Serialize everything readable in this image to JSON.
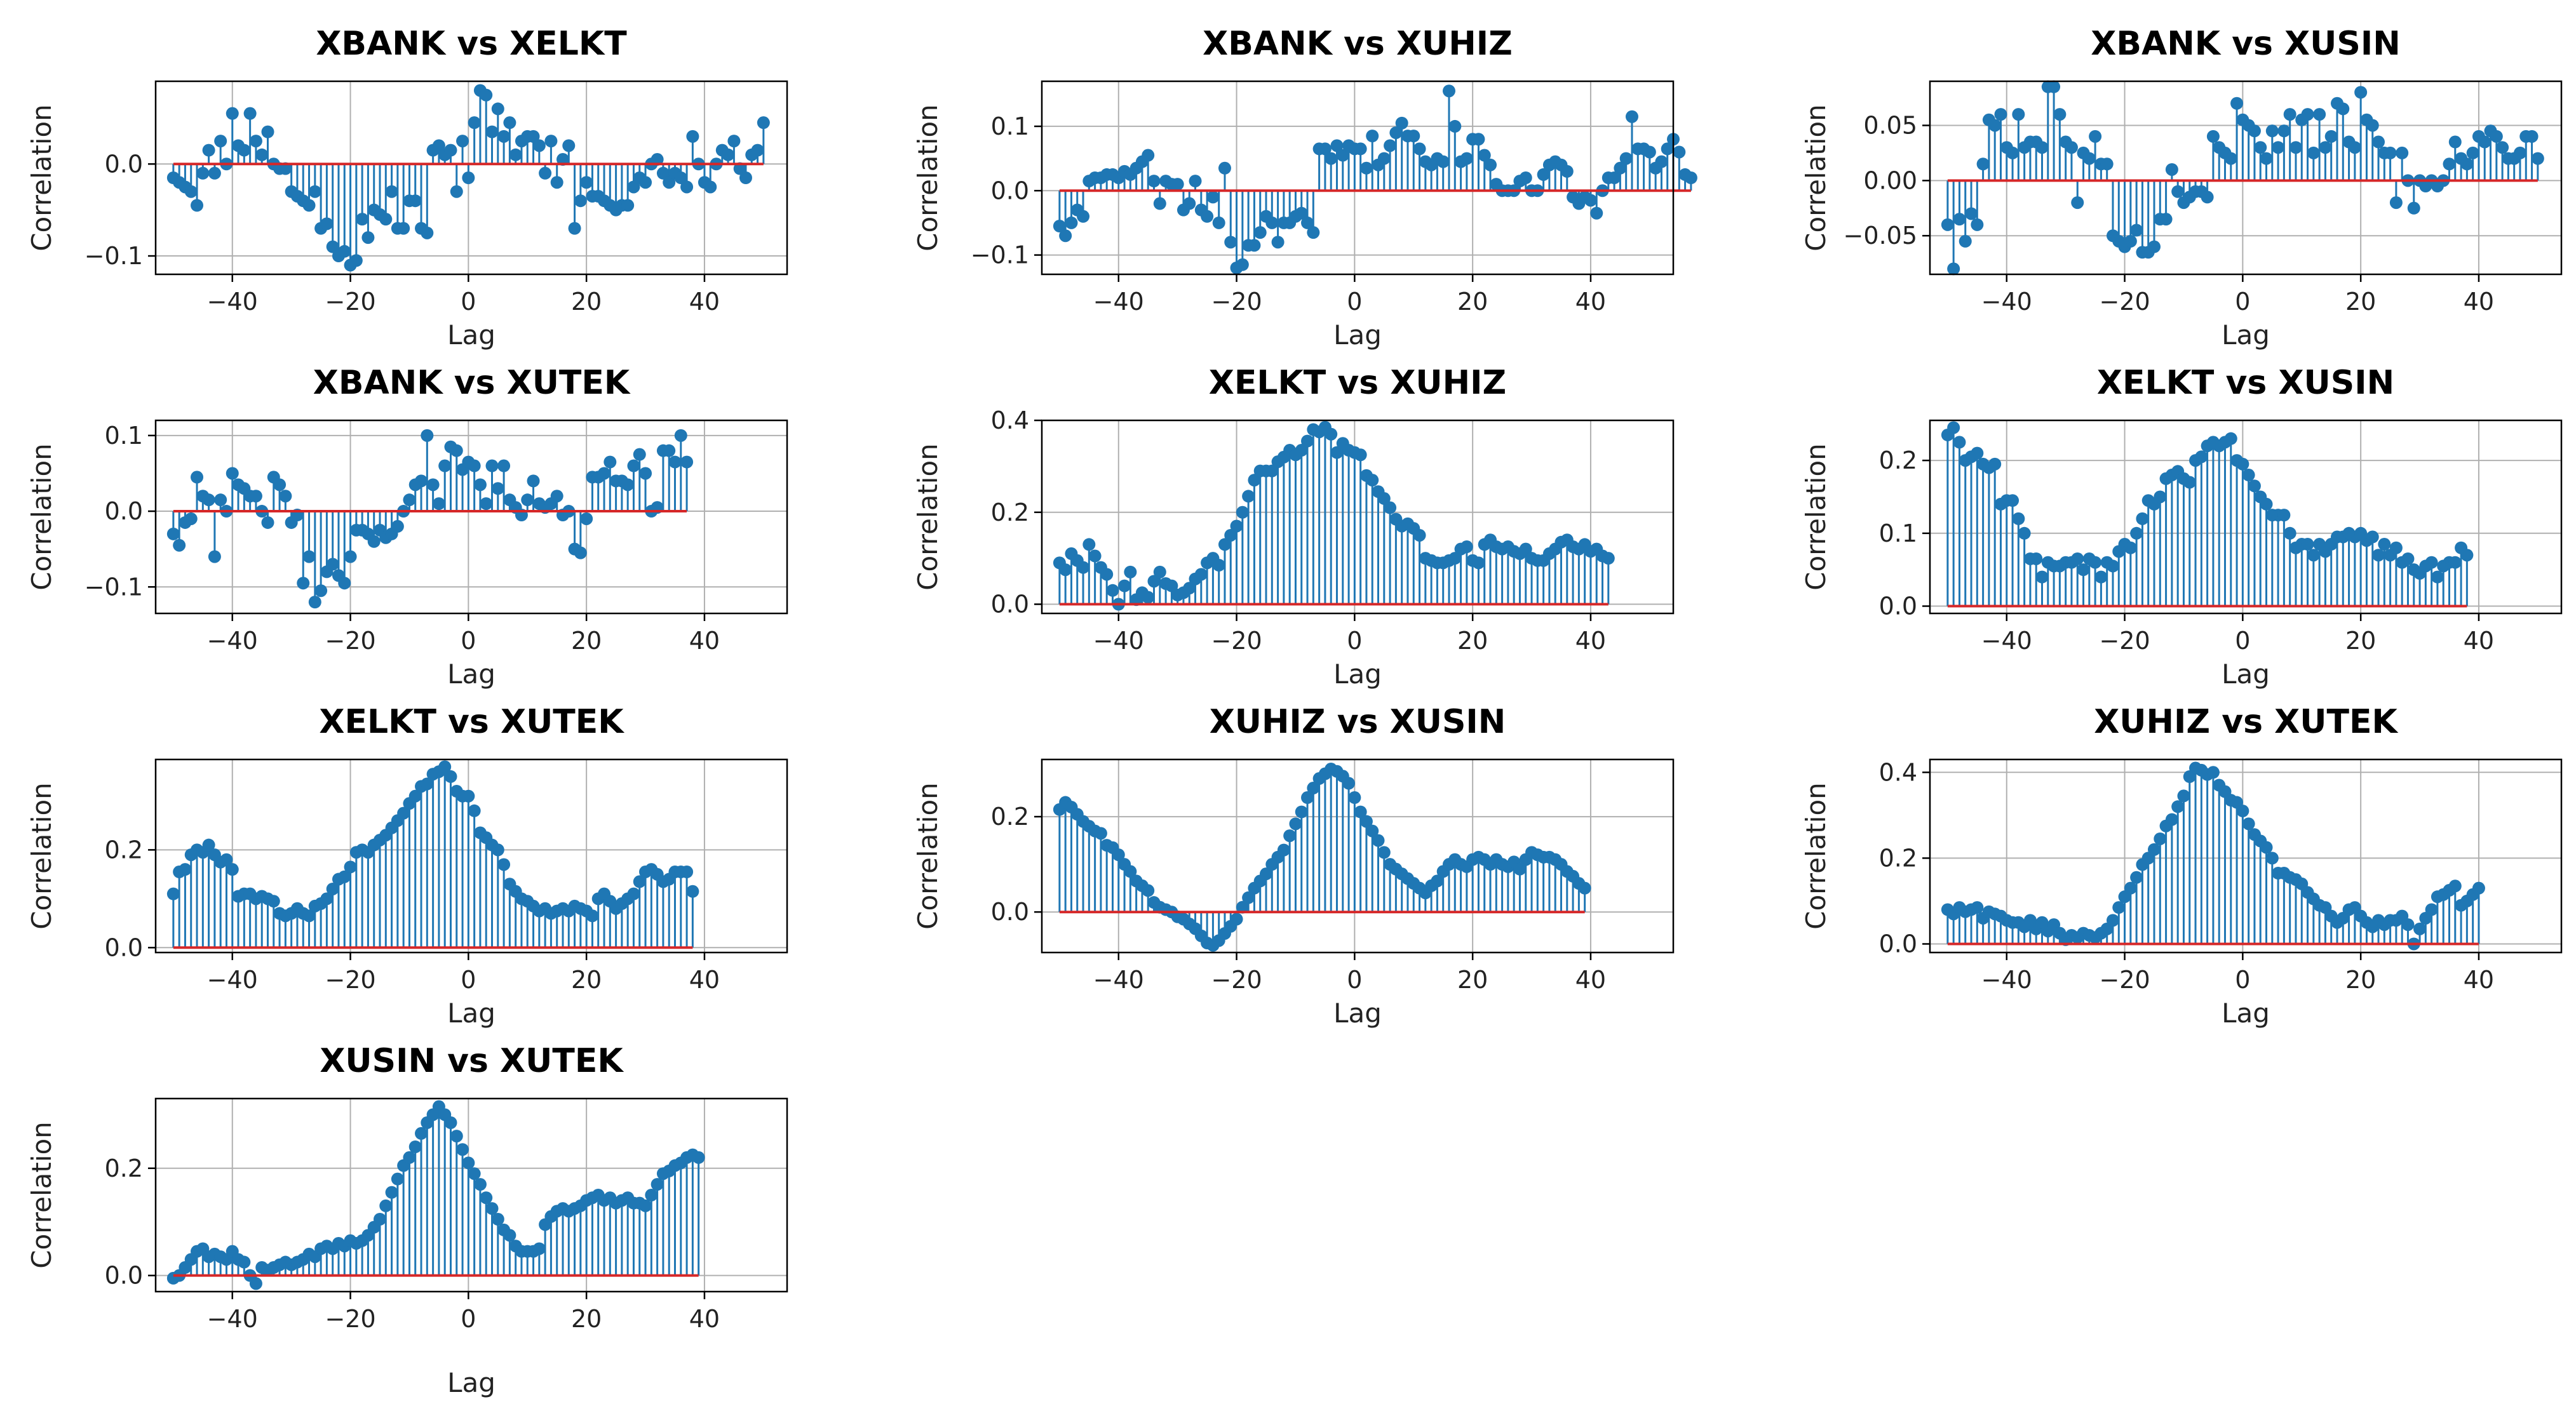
{
  "figure": {
    "subplot_rows": 4,
    "subplot_cols": 3,
    "marker_color": "#1f77b4",
    "baseline_color": "#d62728",
    "grid_color": "#b0b0b0"
  },
  "chart_data": [
    {
      "type": "stem",
      "title": "XBANK vs XELKT",
      "xlabel": "Lag",
      "ylabel": "Correlation",
      "xlim": [
        -53,
        54
      ],
      "ylim": [
        -0.12,
        0.09
      ],
      "xticks": [
        -40,
        -20,
        0,
        20,
        40
      ],
      "xtick_labels": [
        "−40",
        "−20",
        "0",
        "20",
        "40"
      ],
      "yticks": [
        -0.1,
        0.0
      ],
      "ytick_labels": [
        "−0.1",
        "0.0"
      ],
      "lag_start": -50,
      "values": [
        -0.015,
        -0.02,
        -0.025,
        -0.03,
        -0.045,
        -0.01,
        0.015,
        -0.01,
        0.025,
        0.0,
        0.055,
        0.02,
        0.015,
        0.055,
        0.025,
        0.01,
        0.035,
        0.0,
        -0.005,
        -0.005,
        -0.03,
        -0.035,
        -0.04,
        -0.045,
        -0.03,
        -0.07,
        -0.065,
        -0.09,
        -0.1,
        -0.095,
        -0.11,
        -0.105,
        -0.06,
        -0.08,
        -0.05,
        -0.055,
        -0.06,
        -0.03,
        -0.07,
        -0.07,
        -0.04,
        -0.04,
        -0.07,
        -0.075,
        0.015,
        0.02,
        0.01,
        0.015,
        -0.03,
        0.025,
        -0.015,
        0.045,
        0.08,
        0.075,
        0.035,
        0.06,
        0.03,
        0.045,
        0.01,
        0.025,
        0.03,
        0.03,
        0.02,
        -0.01,
        0.025,
        -0.02,
        0.005,
        0.02,
        -0.07,
        -0.04,
        -0.02,
        -0.035,
        -0.035,
        -0.04,
        -0.045,
        -0.05,
        -0.045,
        -0.045,
        -0.025,
        -0.015,
        -0.02,
        0.0,
        0.005,
        -0.01,
        -0.02,
        -0.01,
        -0.015,
        -0.025,
        0.03,
        0.0,
        -0.02,
        -0.025,
        0.0,
        0.015,
        0.01,
        0.025,
        -0.005,
        -0.015,
        0.01,
        0.015,
        0.045
      ]
    },
    {
      "type": "stem",
      "title": "XBANK vs XUHIZ",
      "xlabel": "Lag",
      "ylabel": "Correlation",
      "xlim": [
        -53,
        54
      ],
      "ylim": [
        -0.13,
        0.17
      ],
      "xticks": [
        -40,
        -20,
        0,
        20,
        40
      ],
      "xtick_labels": [
        "−40",
        "−20",
        "0",
        "20",
        "40"
      ],
      "yticks": [
        -0.1,
        0.0,
        0.1
      ],
      "ytick_labels": [
        "−0.1",
        "0.0",
        "0.1"
      ],
      "lag_start": -50,
      "values": [
        -0.055,
        -0.07,
        -0.05,
        -0.03,
        -0.04,
        0.015,
        0.02,
        0.02,
        0.025,
        0.025,
        0.02,
        0.03,
        0.025,
        0.035,
        0.045,
        0.055,
        0.015,
        -0.02,
        0.015,
        0.01,
        0.01,
        -0.03,
        -0.02,
        0.015,
        -0.03,
        -0.04,
        -0.01,
        -0.05,
        0.035,
        -0.08,
        -0.12,
        -0.115,
        -0.085,
        -0.085,
        -0.065,
        -0.04,
        -0.05,
        -0.08,
        -0.05,
        -0.05,
        -0.04,
        -0.035,
        -0.05,
        -0.065,
        0.065,
        0.065,
        0.05,
        0.07,
        0.055,
        0.07,
        0.065,
        0.065,
        0.035,
        0.085,
        0.04,
        0.05,
        0.07,
        0.09,
        0.105,
        0.085,
        0.085,
        0.065,
        0.045,
        0.04,
        0.05,
        0.045,
        0.155,
        0.1,
        0.045,
        0.05,
        0.08,
        0.08,
        0.055,
        0.04,
        0.01,
        0.0,
        0.0,
        0.0,
        0.015,
        0.02,
        0.0,
        0.0,
        0.025,
        0.04,
        0.045,
        0.04,
        0.03,
        -0.01,
        -0.02,
        -0.01,
        -0.015,
        -0.035,
        0.0,
        0.02,
        0.02,
        0.035,
        0.05,
        0.115,
        0.065,
        0.065,
        0.06,
        0.035,
        0.045,
        0.065,
        0.08,
        0.06,
        0.025,
        0.02
      ]
    },
    {
      "type": "stem",
      "title": "XBANK vs XUSIN",
      "xlabel": "Lag",
      "ylabel": "Correlation",
      "xlim": [
        -53,
        54
      ],
      "ylim": [
        -0.085,
        0.09
      ],
      "xticks": [
        -40,
        -20,
        0,
        20,
        40
      ],
      "xtick_labels": [
        "−40",
        "−20",
        "0",
        "20",
        "40"
      ],
      "yticks": [
        -0.05,
        0.0,
        0.05
      ],
      "ytick_labels": [
        "−0.05",
        "0.00",
        "0.05"
      ],
      "lag_start": -50,
      "values": [
        -0.04,
        -0.08,
        -0.035,
        -0.055,
        -0.03,
        -0.04,
        0.015,
        0.055,
        0.05,
        0.06,
        0.03,
        0.025,
        0.06,
        0.03,
        0.035,
        0.035,
        0.03,
        0.085,
        0.085,
        0.06,
        0.035,
        0.03,
        -0.02,
        0.025,
        0.02,
        0.04,
        0.015,
        0.015,
        -0.05,
        -0.055,
        -0.06,
        -0.055,
        -0.045,
        -0.065,
        -0.065,
        -0.06,
        -0.035,
        -0.035,
        0.01,
        -0.01,
        -0.02,
        -0.015,
        -0.01,
        -0.01,
        -0.015,
        0.04,
        0.03,
        0.025,
        0.02,
        0.07,
        0.055,
        0.05,
        0.045,
        0.03,
        0.02,
        0.045,
        0.03,
        0.045,
        0.06,
        0.03,
        0.055,
        0.06,
        0.025,
        0.06,
        0.03,
        0.04,
        0.07,
        0.065,
        0.035,
        0.03,
        0.08,
        0.055,
        0.05,
        0.035,
        0.025,
        0.025,
        -0.02,
        0.025,
        0.0,
        -0.025,
        0.0,
        -0.005,
        0.0,
        -0.005,
        0.0,
        0.015,
        0.035,
        0.02,
        0.015,
        0.025,
        0.04,
        0.035,
        0.045,
        0.04,
        0.03,
        0.02,
        0.02,
        0.025,
        0.04,
        0.04,
        0.02
      ]
    },
    {
      "type": "stem",
      "title": "XBANK vs XUTEK",
      "xlabel": "Lag",
      "ylabel": "Correlation",
      "xlim": [
        -53,
        54
      ],
      "ylim": [
        -0.135,
        0.12
      ],
      "xticks": [
        -40,
        -20,
        0,
        20,
        40
      ],
      "xtick_labels": [
        "−40",
        "−20",
        "0",
        "20",
        "40"
      ],
      "yticks": [
        -0.1,
        0.0,
        0.1
      ],
      "ytick_labels": [
        "−0.1",
        "0.0",
        "0.1"
      ],
      "lag_start": -50,
      "values": [
        -0.03,
        -0.045,
        -0.015,
        -0.01,
        0.045,
        0.02,
        0.015,
        -0.06,
        0.015,
        0.0,
        0.05,
        0.035,
        0.03,
        0.02,
        0.02,
        0.0,
        -0.015,
        0.045,
        0.035,
        0.02,
        -0.015,
        -0.005,
        -0.095,
        -0.06,
        -0.12,
        -0.105,
        -0.08,
        -0.07,
        -0.085,
        -0.095,
        -0.06,
        -0.025,
        -0.025,
        -0.03,
        -0.04,
        -0.025,
        -0.035,
        -0.03,
        -0.02,
        0.0,
        0.015,
        0.035,
        0.04,
        0.1,
        0.035,
        0.01,
        0.06,
        0.085,
        0.08,
        0.055,
        0.065,
        0.06,
        0.035,
        0.01,
        0.06,
        0.03,
        0.06,
        0.015,
        0.005,
        -0.005,
        0.015,
        0.04,
        0.01,
        0.005,
        0.01,
        0.02,
        -0.005,
        0.0,
        -0.05,
        -0.055,
        -0.01,
        0.045,
        0.045,
        0.05,
        0.065,
        0.04,
        0.04,
        0.035,
        0.06,
        0.075,
        0.05,
        0.0,
        0.005,
        0.08,
        0.08,
        0.065,
        0.1,
        0.065
      ]
    },
    {
      "type": "stem",
      "title": "XELKT vs XUHIZ",
      "xlabel": "Lag",
      "ylabel": "Correlation",
      "xlim": [
        -53,
        54
      ],
      "ylim": [
        -0.02,
        0.4
      ],
      "xticks": [
        -40,
        -20,
        0,
        20,
        40
      ],
      "xtick_labels": [
        "−40",
        "−20",
        "0",
        "20",
        "40"
      ],
      "yticks": [
        0.0,
        0.2,
        0.4
      ],
      "ytick_labels": [
        "0.0",
        "0.2",
        "0.4"
      ],
      "lag_start": -50,
      "values": [
        0.09,
        0.075,
        0.11,
        0.095,
        0.08,
        0.13,
        0.105,
        0.08,
        0.065,
        0.03,
        0.0,
        0.04,
        0.07,
        0.01,
        0.025,
        0.015,
        0.05,
        0.07,
        0.045,
        0.04,
        0.02,
        0.025,
        0.035,
        0.055,
        0.065,
        0.09,
        0.1,
        0.085,
        0.13,
        0.15,
        0.17,
        0.2,
        0.235,
        0.27,
        0.29,
        0.29,
        0.29,
        0.31,
        0.32,
        0.335,
        0.325,
        0.335,
        0.355,
        0.38,
        0.375,
        0.385,
        0.37,
        0.33,
        0.35,
        0.335,
        0.33,
        0.325,
        0.28,
        0.27,
        0.245,
        0.23,
        0.21,
        0.185,
        0.17,
        0.175,
        0.165,
        0.15,
        0.1,
        0.095,
        0.09,
        0.09,
        0.095,
        0.1,
        0.12,
        0.125,
        0.095,
        0.09,
        0.13,
        0.14,
        0.125,
        0.12,
        0.125,
        0.115,
        0.11,
        0.12,
        0.1,
        0.095,
        0.095,
        0.11,
        0.12,
        0.135,
        0.14,
        0.125,
        0.12,
        0.13,
        0.115,
        0.12,
        0.105,
        0.1
      ]
    },
    {
      "type": "stem",
      "title": "XELKT vs XUSIN",
      "xlabel": "Lag",
      "ylabel": "Correlation",
      "xlim": [
        -53,
        54
      ],
      "ylim": [
        -0.01,
        0.255
      ],
      "xticks": [
        -40,
        -20,
        0,
        20,
        40
      ],
      "xtick_labels": [
        "−40",
        "−20",
        "0",
        "20",
        "40"
      ],
      "yticks": [
        0.0,
        0.1,
        0.2
      ],
      "ytick_labels": [
        "0.0",
        "0.1",
        "0.2"
      ],
      "lag_start": -50,
      "values": [
        0.235,
        0.245,
        0.225,
        0.2,
        0.205,
        0.21,
        0.195,
        0.19,
        0.195,
        0.14,
        0.145,
        0.145,
        0.12,
        0.1,
        0.065,
        0.065,
        0.04,
        0.06,
        0.055,
        0.055,
        0.06,
        0.06,
        0.065,
        0.05,
        0.065,
        0.06,
        0.04,
        0.06,
        0.055,
        0.075,
        0.085,
        0.08,
        0.1,
        0.12,
        0.145,
        0.14,
        0.15,
        0.175,
        0.18,
        0.185,
        0.175,
        0.17,
        0.2,
        0.205,
        0.22,
        0.225,
        0.22,
        0.225,
        0.23,
        0.2,
        0.195,
        0.18,
        0.165,
        0.15,
        0.14,
        0.125,
        0.125,
        0.125,
        0.1,
        0.08,
        0.085,
        0.085,
        0.07,
        0.085,
        0.075,
        0.085,
        0.095,
        0.095,
        0.1,
        0.095,
        0.1,
        0.09,
        0.095,
        0.07,
        0.085,
        0.07,
        0.08,
        0.06,
        0.065,
        0.05,
        0.045,
        0.055,
        0.06,
        0.04,
        0.055,
        0.06,
        0.06,
        0.08,
        0.07
      ]
    },
    {
      "type": "stem",
      "title": "XELKT vs XUTEK",
      "xlabel": "Lag",
      "ylabel": "Correlation",
      "xlim": [
        -53,
        54
      ],
      "ylim": [
        -0.01,
        0.385
      ],
      "xticks": [
        -40,
        -20,
        0,
        20,
        40
      ],
      "xtick_labels": [
        "−40",
        "−20",
        "0",
        "20",
        "40"
      ],
      "yticks": [
        0.0,
        0.2
      ],
      "ytick_labels": [
        "0.0",
        "0.2"
      ],
      "lag_start": -50,
      "values": [
        0.11,
        0.155,
        0.16,
        0.19,
        0.2,
        0.195,
        0.21,
        0.19,
        0.175,
        0.18,
        0.16,
        0.105,
        0.11,
        0.11,
        0.1,
        0.105,
        0.1,
        0.095,
        0.07,
        0.065,
        0.07,
        0.08,
        0.07,
        0.065,
        0.085,
        0.09,
        0.1,
        0.12,
        0.14,
        0.145,
        0.165,
        0.195,
        0.2,
        0.195,
        0.21,
        0.22,
        0.23,
        0.245,
        0.26,
        0.275,
        0.295,
        0.31,
        0.33,
        0.335,
        0.355,
        0.36,
        0.37,
        0.35,
        0.32,
        0.31,
        0.31,
        0.28,
        0.235,
        0.225,
        0.21,
        0.2,
        0.17,
        0.13,
        0.115,
        0.1,
        0.095,
        0.085,
        0.075,
        0.08,
        0.07,
        0.075,
        0.08,
        0.075,
        0.085,
        0.08,
        0.075,
        0.065,
        0.1,
        0.11,
        0.095,
        0.08,
        0.09,
        0.1,
        0.11,
        0.135,
        0.155,
        0.16,
        0.15,
        0.135,
        0.14,
        0.155,
        0.155,
        0.155,
        0.115
      ]
    },
    {
      "type": "stem",
      "title": "XUHIZ vs XUSIN",
      "xlabel": "Lag",
      "ylabel": "Correlation",
      "xlim": [
        -53,
        54
      ],
      "ylim": [
        -0.085,
        0.32
      ],
      "xticks": [
        -40,
        -20,
        0,
        20,
        40
      ],
      "xtick_labels": [
        "−40",
        "−20",
        "0",
        "20",
        "40"
      ],
      "yticks": [
        0.0,
        0.2
      ],
      "ytick_labels": [
        "0.0",
        "0.2"
      ],
      "lag_start": -50,
      "values": [
        0.215,
        0.23,
        0.22,
        0.205,
        0.19,
        0.18,
        0.17,
        0.165,
        0.14,
        0.135,
        0.12,
        0.1,
        0.085,
        0.065,
        0.055,
        0.045,
        0.02,
        0.01,
        0.005,
        0.0,
        -0.01,
        -0.015,
        -0.025,
        -0.035,
        -0.05,
        -0.065,
        -0.07,
        -0.06,
        -0.045,
        -0.03,
        -0.015,
        0.01,
        0.03,
        0.05,
        0.065,
        0.08,
        0.1,
        0.115,
        0.13,
        0.16,
        0.185,
        0.21,
        0.24,
        0.26,
        0.28,
        0.29,
        0.3,
        0.295,
        0.285,
        0.27,
        0.24,
        0.21,
        0.19,
        0.17,
        0.15,
        0.125,
        0.1,
        0.09,
        0.08,
        0.07,
        0.06,
        0.05,
        0.04,
        0.055,
        0.065,
        0.085,
        0.1,
        0.11,
        0.1,
        0.095,
        0.11,
        0.115,
        0.11,
        0.1,
        0.11,
        0.1,
        0.095,
        0.105,
        0.09,
        0.11,
        0.125,
        0.12,
        0.115,
        0.115,
        0.11,
        0.1,
        0.085,
        0.075,
        0.06,
        0.05
      ]
    },
    {
      "type": "stem",
      "title": "XUHIZ vs XUTEK",
      "xlabel": "Lag",
      "ylabel": "Correlation",
      "xlim": [
        -53,
        54
      ],
      "ylim": [
        -0.02,
        0.43
      ],
      "xticks": [
        -40,
        -20,
        0,
        20,
        40
      ],
      "xtick_labels": [
        "−40",
        "−20",
        "0",
        "20",
        "40"
      ],
      "yticks": [
        0.0,
        0.2,
        0.4
      ],
      "ytick_labels": [
        "0.0",
        "0.2",
        "0.4"
      ],
      "lag_start": -50,
      "values": [
        0.08,
        0.07,
        0.085,
        0.075,
        0.08,
        0.085,
        0.06,
        0.075,
        0.07,
        0.065,
        0.055,
        0.05,
        0.05,
        0.04,
        0.055,
        0.035,
        0.05,
        0.03,
        0.045,
        0.025,
        0.01,
        0.02,
        0.015,
        0.025,
        0.02,
        0.015,
        0.025,
        0.035,
        0.055,
        0.085,
        0.11,
        0.13,
        0.155,
        0.185,
        0.2,
        0.22,
        0.245,
        0.275,
        0.29,
        0.32,
        0.345,
        0.39,
        0.41,
        0.405,
        0.395,
        0.4,
        0.37,
        0.355,
        0.335,
        0.33,
        0.31,
        0.28,
        0.255,
        0.24,
        0.225,
        0.2,
        0.165,
        0.165,
        0.155,
        0.15,
        0.14,
        0.12,
        0.105,
        0.09,
        0.085,
        0.065,
        0.05,
        0.06,
        0.08,
        0.085,
        0.065,
        0.05,
        0.04,
        0.055,
        0.045,
        0.055,
        0.055,
        0.065,
        0.045,
        0.0,
        0.035,
        0.06,
        0.08,
        0.11,
        0.115,
        0.125,
        0.135,
        0.09,
        0.1,
        0.115,
        0.13
      ]
    },
    {
      "type": "stem",
      "title": "XUSIN vs XUTEK",
      "xlabel": "Lag",
      "ylabel": "Correlation",
      "xlim": [
        -53,
        54
      ],
      "ylim": [
        -0.03,
        0.33
      ],
      "xticks": [
        -40,
        -20,
        0,
        20,
        40
      ],
      "xtick_labels": [
        "−40",
        "−20",
        "0",
        "20",
        "40"
      ],
      "yticks": [
        0.0,
        0.2
      ],
      "ytick_labels": [
        "0.0",
        "0.2"
      ],
      "lag_start": -50,
      "values": [
        -0.005,
        0.0,
        0.015,
        0.03,
        0.045,
        0.05,
        0.035,
        0.04,
        0.035,
        0.03,
        0.045,
        0.03,
        0.025,
        0.0,
        -0.015,
        0.015,
        0.01,
        0.015,
        0.02,
        0.025,
        0.02,
        0.025,
        0.03,
        0.04,
        0.035,
        0.05,
        0.055,
        0.05,
        0.06,
        0.055,
        0.065,
        0.06,
        0.065,
        0.075,
        0.09,
        0.105,
        0.13,
        0.155,
        0.18,
        0.205,
        0.22,
        0.24,
        0.265,
        0.285,
        0.3,
        0.315,
        0.3,
        0.285,
        0.26,
        0.235,
        0.21,
        0.19,
        0.17,
        0.145,
        0.125,
        0.105,
        0.085,
        0.075,
        0.055,
        0.045,
        0.045,
        0.045,
        0.05,
        0.095,
        0.11,
        0.12,
        0.125,
        0.12,
        0.125,
        0.13,
        0.14,
        0.145,
        0.15,
        0.14,
        0.145,
        0.135,
        0.14,
        0.145,
        0.135,
        0.135,
        0.13,
        0.15,
        0.17,
        0.19,
        0.195,
        0.205,
        0.21,
        0.22,
        0.225,
        0.22
      ]
    }
  ]
}
